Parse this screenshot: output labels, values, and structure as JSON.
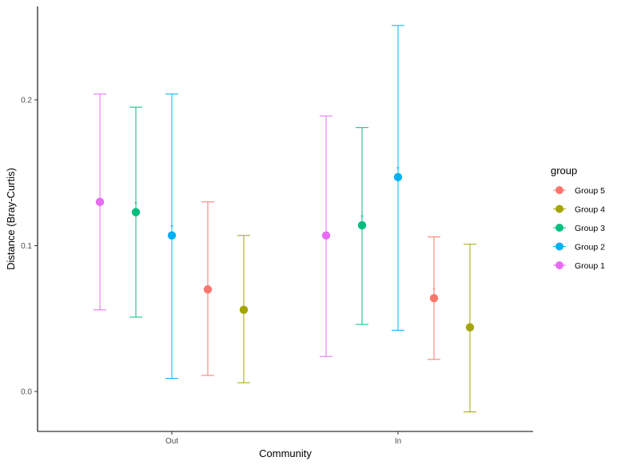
{
  "chart_data": {
    "type": "errorbar",
    "title": "",
    "xlabel": "Community",
    "ylabel": "Distance (Bray-Curtis)",
    "categories": [
      "Out",
      "In"
    ],
    "ylim": [
      -0.03,
      0.265
    ],
    "yticks": [
      0.0,
      0.1,
      0.2
    ],
    "ytick_labels": [
      "0.0",
      "0.1",
      "0.2"
    ],
    "legend_title": "group",
    "legend_position": "right",
    "significance_marker": "*",
    "series": [
      {
        "name": "Group 1",
        "color": "#E76BF3",
        "points": [
          {
            "category": "Out",
            "mean": 0.13,
            "low": 0.056,
            "high": 0.204,
            "significant": false
          },
          {
            "category": "In",
            "mean": 0.107,
            "low": 0.024,
            "high": 0.189,
            "significant": false
          }
        ]
      },
      {
        "name": "Group 3",
        "color": "#00BF7D",
        "points": [
          {
            "category": "Out",
            "mean": 0.123,
            "low": 0.051,
            "high": 0.195,
            "significant": true
          },
          {
            "category": "In",
            "mean": 0.114,
            "low": 0.046,
            "high": 0.181,
            "significant": true
          }
        ]
      },
      {
        "name": "Group 2",
        "color": "#00B0F6",
        "points": [
          {
            "category": "Out",
            "mean": 0.107,
            "low": 0.009,
            "high": 0.204,
            "significant": true
          },
          {
            "category": "In",
            "mean": 0.147,
            "low": 0.042,
            "high": 0.251,
            "significant": true
          }
        ]
      },
      {
        "name": "Group 5",
        "color": "#F8766D",
        "points": [
          {
            "category": "Out",
            "mean": 0.07,
            "low": 0.011,
            "high": 0.13,
            "significant": false
          },
          {
            "category": "In",
            "mean": 0.064,
            "low": 0.022,
            "high": 0.106,
            "significant": true
          }
        ]
      },
      {
        "name": "Group 4",
        "color": "#A3A500",
        "points": [
          {
            "category": "Out",
            "mean": 0.056,
            "low": 0.006,
            "high": 0.107,
            "significant": false
          },
          {
            "category": "In",
            "mean": 0.044,
            "low": -0.014,
            "high": 0.101,
            "significant": false
          }
        ]
      }
    ],
    "legend_order": [
      "Group 5",
      "Group 4",
      "Group 3",
      "Group 2",
      "Group 1"
    ]
  }
}
